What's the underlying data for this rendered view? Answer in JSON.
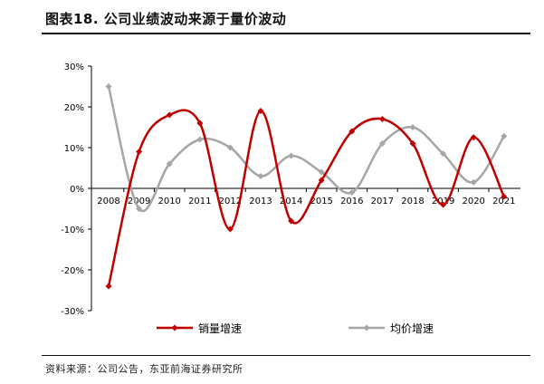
{
  "header": {
    "title": "图表18. 公司业绩波动来源于量价波动"
  },
  "chart_data": {
    "type": "line",
    "categories": [
      "2008",
      "2009",
      "2010",
      "2011",
      "2012",
      "2013",
      "2014",
      "2015",
      "2016",
      "2017",
      "2018",
      "2019",
      "2020",
      "2021"
    ],
    "series": [
      {
        "name": "销量增速",
        "color": "#c00000",
        "values": [
          -24,
          9,
          18,
          16,
          -10,
          19,
          -8,
          2,
          14,
          17,
          11,
          -4,
          12.5,
          -2
        ]
      },
      {
        "name": "均价增速",
        "color": "#a6a6a6",
        "values": [
          25,
          -5,
          6,
          12,
          10,
          3,
          8,
          4,
          -1,
          11,
          15,
          8.5,
          1.5,
          12.8
        ]
      }
    ],
    "ylim": [
      -30,
      30
    ],
    "yticks": [
      "-30%",
      "-20%",
      "-10%",
      "0%",
      "10%",
      "20%",
      "30%"
    ],
    "ytick_values": [
      -30,
      -20,
      -10,
      0,
      10,
      20,
      30
    ],
    "grid": false,
    "legend_placement": "bottom",
    "xlabel": "",
    "ylabel": ""
  },
  "footer": {
    "source": "资料来源：公司公告，东亚前海证券研究所"
  }
}
